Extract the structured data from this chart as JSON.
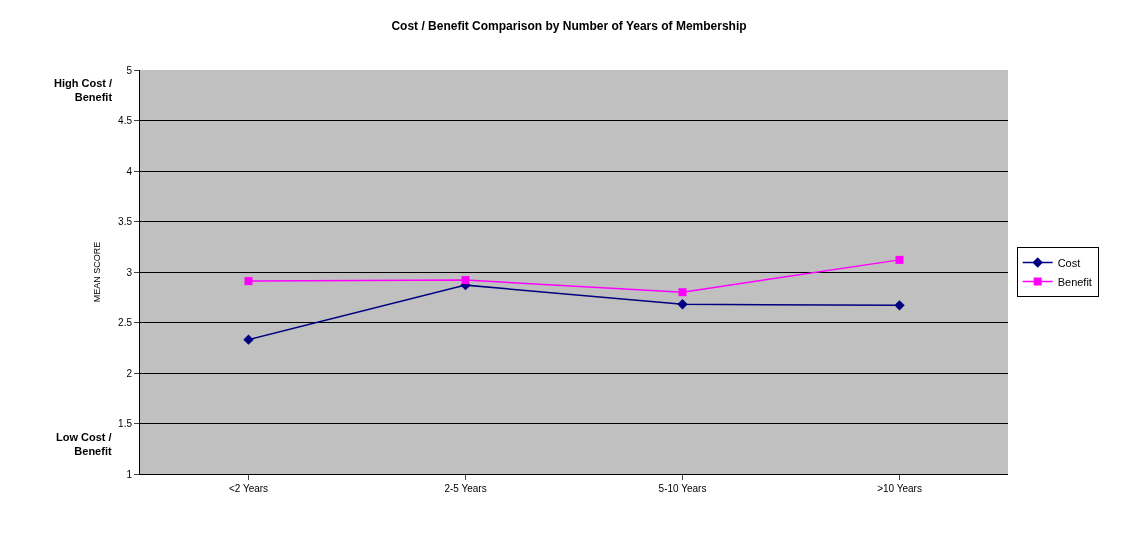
{
  "chart_data": {
    "type": "line",
    "title": "Cost / Benefit Comparison by Number of Years of Membership",
    "ylabel": "MEAN SCORE",
    "categories": [
      "<2 Years",
      "2-5 Years",
      "5-10 Years",
      ">10 Years"
    ],
    "series": [
      {
        "name": "Cost",
        "color": "#000080",
        "marker": "diamond",
        "values": [
          2.33,
          2.87,
          2.68,
          2.67
        ]
      },
      {
        "name": "Benefit",
        "color": "#ff00ff",
        "marker": "square",
        "values": [
          2.91,
          2.92,
          2.8,
          3.12
        ]
      }
    ],
    "ylim": [
      1,
      5
    ],
    "yticks": [
      1,
      1.5,
      2,
      2.5,
      3,
      3.5,
      4,
      4.5,
      5
    ],
    "grid": "y",
    "legend": "right",
    "annotations": [
      "High Cost / Benefit",
      "Low Cost / Benefit"
    ]
  }
}
